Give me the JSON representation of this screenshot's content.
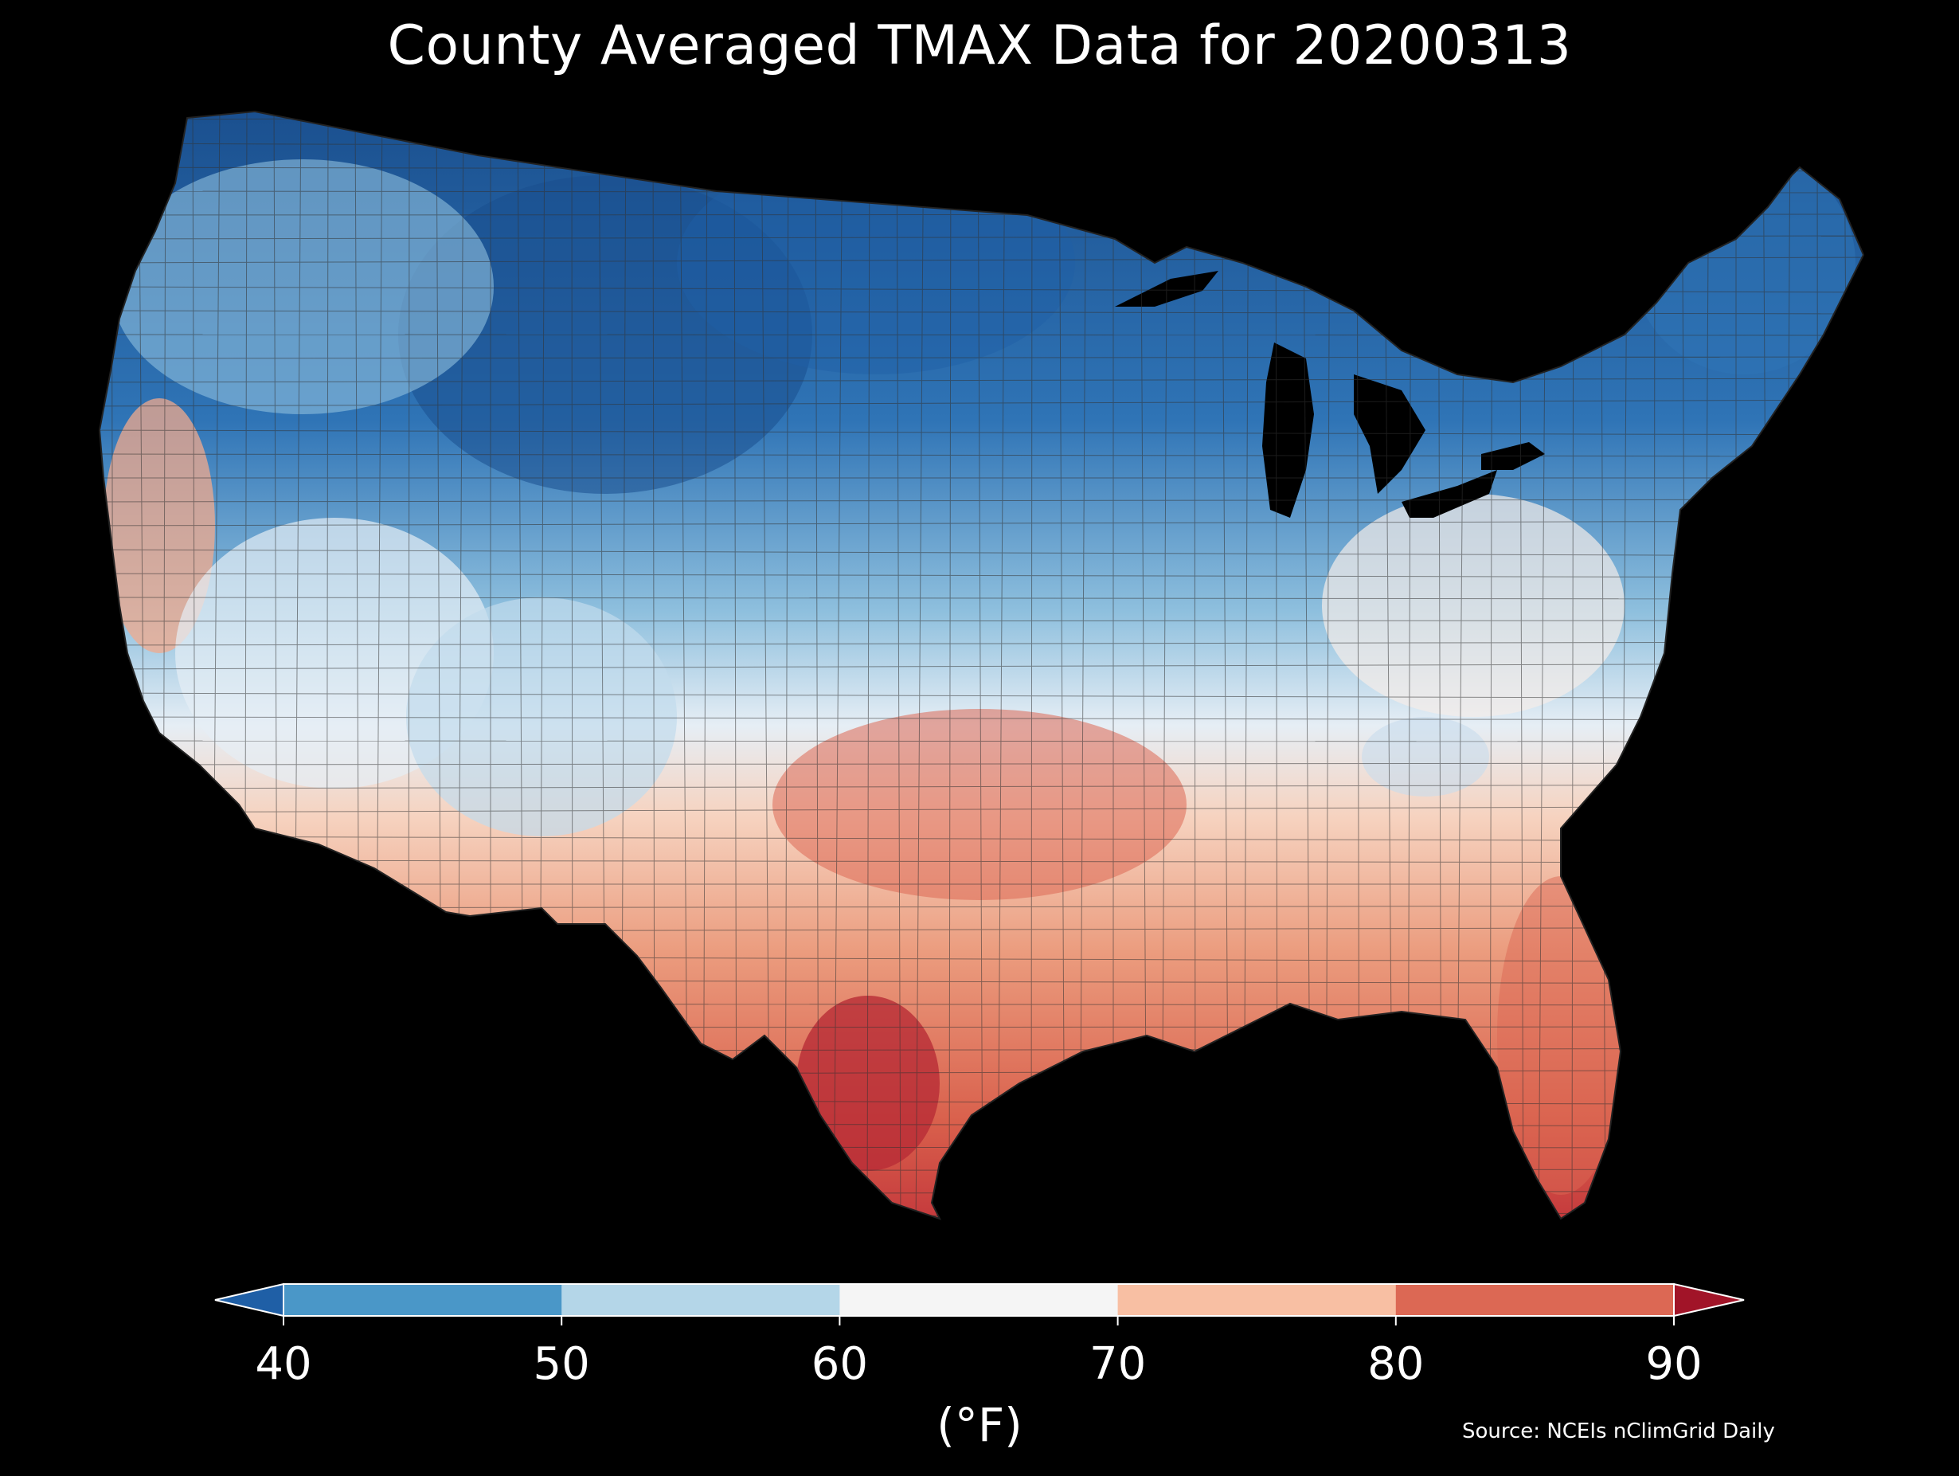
{
  "title": "County Averaged TMAX Data for 20200313",
  "colorbar": {
    "units": "(°F)",
    "ticks": [
      "40",
      "50",
      "60",
      "70",
      "80",
      "90"
    ],
    "bins": [
      {
        "range": "<40",
        "color": "#1f5fa6"
      },
      {
        "range": "40-50",
        "color": "#4a97c8"
      },
      {
        "range": "50-60",
        "color": "#b4d6e8"
      },
      {
        "range": "60-70",
        "color": "#f5f5f5"
      },
      {
        "range": "70-80",
        "color": "#f8bfa3"
      },
      {
        "range": "80-90",
        "color": "#dc6854"
      },
      {
        "range": ">90",
        "color": "#a11428"
      }
    ],
    "extend": "both"
  },
  "source": "Source: NCEIs nClimGrid Daily",
  "map": {
    "region": "Contiguous United States",
    "variable": "TMAX",
    "background": "#000000",
    "county_border_color": "#333333"
  }
}
